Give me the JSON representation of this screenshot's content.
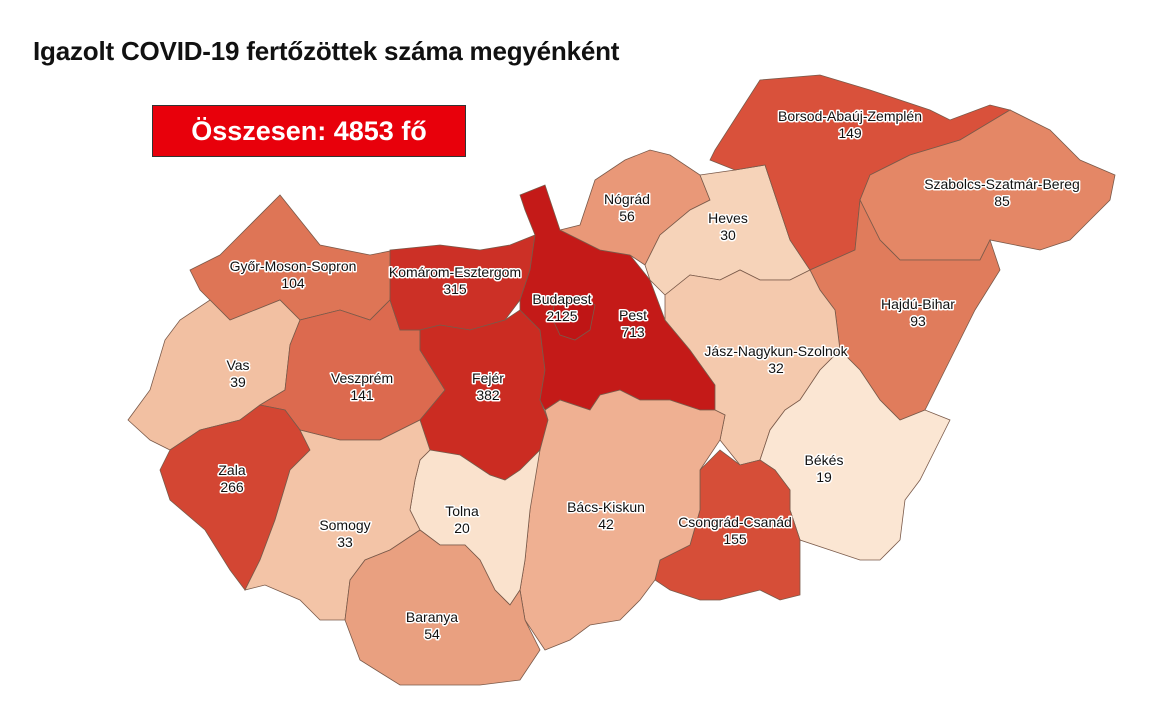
{
  "title": "Igazolt COVID-19 fertőzöttek száma megyénként",
  "total_label": "Összesen: 4853 fő",
  "colors": {
    "total_box": "#e8000b",
    "border": "#7a5a4a"
  },
  "counties": [
    {
      "name": "Győr-Moson-Sopron",
      "value": "104",
      "color": "#de7556"
    },
    {
      "name": "Vas",
      "value": "39",
      "color": "#f2c0a2"
    },
    {
      "name": "Veszprém",
      "value": "141",
      "color": "#dc6a4f"
    },
    {
      "name": "Zala",
      "value": "266",
      "color": "#d34633"
    },
    {
      "name": "Komárom-Esztergom",
      "value": "315",
      "color": "#cc3026"
    },
    {
      "name": "Fejér",
      "value": "382",
      "color": "#cb2c22"
    },
    {
      "name": "Pest",
      "value": "713",
      "color": "#c41a18"
    },
    {
      "name": "Budapest",
      "value": "2125",
      "color": "#bf1515"
    },
    {
      "name": "Nógrád",
      "value": "56",
      "color": "#e99878"
    },
    {
      "name": "Heves",
      "value": "30",
      "color": "#f6d3b9"
    },
    {
      "name": "Borsod-Abaúj-Zemplén",
      "value": "149",
      "color": "#d9513b"
    },
    {
      "name": "Szabolcs-Szatmár-Bereg",
      "value": "85",
      "color": "#e48766"
    },
    {
      "name": "Hajdú-Bihar",
      "value": "93",
      "color": "#e07c5c"
    },
    {
      "name": "Jász-Nagykun-Szolnok",
      "value": "32",
      "color": "#f4c9ad"
    },
    {
      "name": "Békés",
      "value": "19",
      "color": "#fbe6d3"
    },
    {
      "name": "Csongrád-Csanád",
      "value": "155",
      "color": "#d64e38"
    },
    {
      "name": "Bács-Kiskun",
      "value": "42",
      "color": "#efb092"
    },
    {
      "name": "Tolna",
      "value": "20",
      "color": "#fae2cd"
    },
    {
      "name": "Somogy",
      "value": "33",
      "color": "#f3c4a7"
    },
    {
      "name": "Baranya",
      "value": "54",
      "color": "#e9a080"
    }
  ]
}
